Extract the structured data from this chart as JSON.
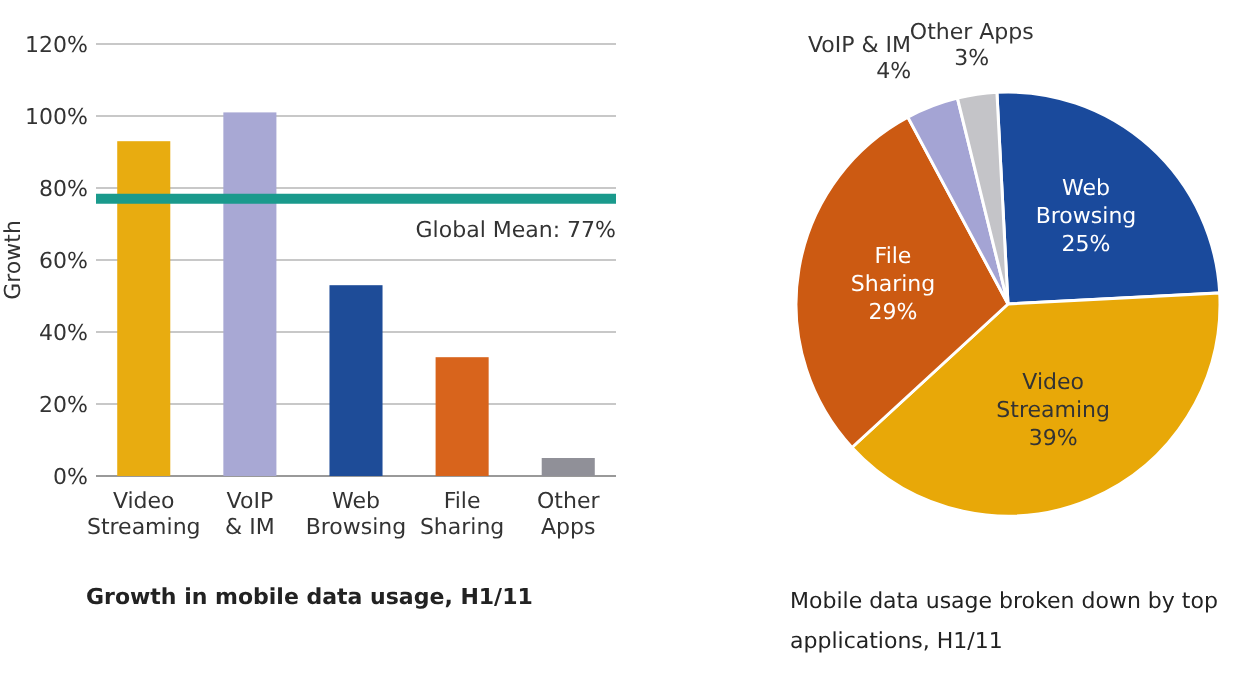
{
  "chart_data": [
    {
      "type": "bar",
      "title": "Growth in mobile data usage, H1/11",
      "ylabel": "Growth",
      "categories": [
        "Video Streaming",
        "VoIP & IM",
        "Web Browsing",
        "File Sharing",
        "Other Apps"
      ],
      "values": [
        93,
        101,
        53,
        33,
        5
      ],
      "colors": [
        "#e8ac10",
        "#a8a8d4",
        "#1e4c98",
        "#d8641c",
        "#909098"
      ],
      "ylim": [
        0,
        120
      ],
      "yticks": [
        {
          "value": 0,
          "label": "0%"
        },
        {
          "value": 20,
          "label": "20%"
        },
        {
          "value": 40,
          "label": "40%"
        },
        {
          "value": 60,
          "label": "60%"
        },
        {
          "value": 80,
          "label": "80%"
        },
        {
          "value": 100,
          "label": "100%"
        },
        {
          "value": 120,
          "label": "120%"
        }
      ],
      "grid": "y",
      "ref_lines": [
        {
          "axis": "y",
          "value": 77,
          "label": "Global Mean: 77%",
          "color": "#1a9a8c"
        }
      ]
    },
    {
      "type": "pie",
      "title": "Mobile data usage broken down by top applications, H1/11",
      "categories": [
        "Web Browsing",
        "Video Streaming",
        "File Sharing",
        "VoIP & IM",
        "Other Apps"
      ],
      "values": [
        25,
        39,
        29,
        4,
        3
      ],
      "colors": [
        "#1a4a9c",
        "#e8a808",
        "#cc5a12",
        "#a4a4d4",
        "#c4c4c8"
      ],
      "value_labels": [
        "25%",
        "39%",
        "29%",
        "4%",
        "3%"
      ]
    }
  ]
}
